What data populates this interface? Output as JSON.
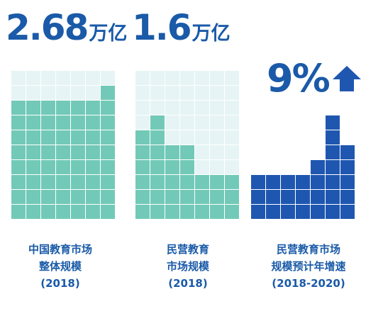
{
  "stats": {
    "market_total": {
      "value": "2.68",
      "unit": "万亿"
    },
    "private_market": {
      "value": "1.6",
      "unit": "万亿"
    },
    "growth": {
      "value": "9%",
      "icon": "up-arrow-icon"
    }
  },
  "captions": {
    "total": [
      "中国教育市场",
      "整体规模",
      "(2018)"
    ],
    "private": [
      "民营教育",
      "市场规模",
      "(2018)"
    ],
    "growth": [
      "民营教育市场",
      "规模预计年增速",
      "(2018-2020)"
    ]
  },
  "colors": {
    "teal": "#72c9b7",
    "teal_light": "#e6f4f5",
    "blue": "#1f57b0",
    "blue_text": "#1a5aa8"
  },
  "chart_data": [
    {
      "type": "waffle",
      "title": "中国教育市场整体规模 (2018)",
      "grid": {
        "cols": 7,
        "rows": 10
      },
      "column_heights": [
        8,
        8,
        8,
        8,
        8,
        8,
        9
      ],
      "label": "2.68万亿"
    },
    {
      "type": "waffle",
      "title": "民营教育市场规模 (2018)",
      "grid": {
        "cols": 7,
        "rows": 10
      },
      "column_heights": [
        6,
        7,
        5,
        5,
        3,
        3,
        3
      ],
      "label": "1.6万亿"
    },
    {
      "type": "waffle",
      "title": "民营教育市场规模预计年增速 (2018-2020)",
      "grid": {
        "cols": 7,
        "rows": 7
      },
      "column_heights": [
        3,
        3,
        3,
        3,
        4,
        7,
        5
      ],
      "label": "9%"
    }
  ]
}
